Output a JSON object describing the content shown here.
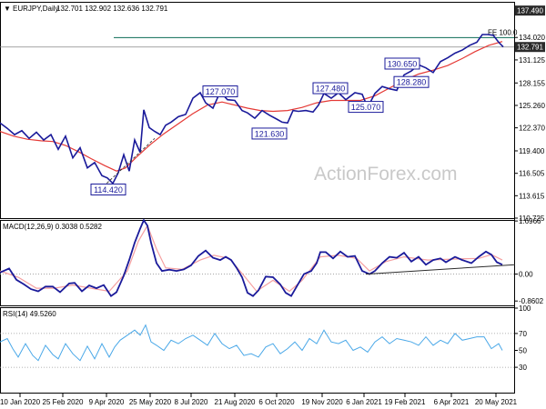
{
  "header": {
    "symbol": "EURJPY,Daily",
    "ohlc": "132.701 132.902 132.636 132.791",
    "macd_label": "MACD(12,26,9) 0.3038 0.5282",
    "rsi_label": "RSI(14) 49.5260"
  },
  "watermark": "ActionForex.com",
  "colors": {
    "price": "#1a1a9a",
    "ma": "#e53935",
    "signal": "#f5a0a0",
    "trend": "#2c2c2c",
    "fe_line": "#0b6b55",
    "grid_dot": "#9a9a9a",
    "price_tag": "#2c2c2c"
  },
  "chart_data": [
    {
      "type": "line",
      "title": "EURJPY,Daily",
      "ylim": [
        110.725,
        138.5
      ],
      "y_ticks": [
        "137.490",
        "134.020",
        "131.125",
        "128.155",
        "125.260",
        "122.370",
        "119.400",
        "116.505",
        "113.615",
        "110.725"
      ],
      "current_price": "132.791",
      "fe_level": {
        "value": 134.0,
        "label": "FE 100.0"
      },
      "moving_average_points": [
        [
          0,
          121.9
        ],
        [
          15,
          121.3
        ],
        [
          30,
          120.9
        ],
        [
          45,
          120.7
        ],
        [
          58,
          120.6
        ],
        [
          72,
          120.1
        ],
        [
          86,
          119.3
        ],
        [
          100,
          118.4
        ],
        [
          115,
          117.5
        ],
        [
          128,
          116.8
        ],
        [
          138,
          117.2
        ],
        [
          150,
          118.6
        ],
        [
          165,
          120.2
        ],
        [
          180,
          121.6
        ],
        [
          196,
          122.9
        ],
        [
          212,
          124.2
        ],
        [
          228,
          125.3
        ],
        [
          244,
          125.7
        ],
        [
          258,
          125.3
        ],
        [
          272,
          124.9
        ],
        [
          286,
          124.6
        ],
        [
          300,
          124.5
        ],
        [
          316,
          124.6
        ],
        [
          332,
          125.0
        ],
        [
          348,
          125.6
        ],
        [
          364,
          125.9
        ],
        [
          380,
          125.9
        ],
        [
          396,
          125.9
        ],
        [
          412,
          126.5
        ],
        [
          428,
          127.5
        ],
        [
          444,
          128.5
        ],
        [
          460,
          129.3
        ],
        [
          476,
          129.8
        ],
        [
          492,
          130.4
        ],
        [
          508,
          131.3
        ],
        [
          522,
          132.2
        ],
        [
          537,
          133.0
        ],
        [
          552,
          133.5
        ]
      ],
      "price_points": [
        [
          0,
          123.0
        ],
        [
          8,
          122.3
        ],
        [
          16,
          121.5
        ],
        [
          24,
          122.0
        ],
        [
          32,
          121.0
        ],
        [
          40,
          121.8
        ],
        [
          48,
          120.8
        ],
        [
          56,
          121.5
        ],
        [
          64,
          119.6
        ],
        [
          72,
          121.3
        ],
        [
          80,
          118.5
        ],
        [
          88,
          119.8
        ],
        [
          96,
          117.2
        ],
        [
          104,
          117.9
        ],
        [
          112,
          116.2
        ],
        [
          118,
          115.9
        ],
        [
          124,
          115.2
        ],
        [
          130,
          116.6
        ],
        [
          136,
          118.9
        ],
        [
          142,
          116.8
        ],
        [
          148,
          120.8
        ],
        [
          154,
          119.2
        ],
        [
          158,
          124.7
        ],
        [
          164,
          122.4
        ],
        [
          170,
          121.9
        ],
        [
          176,
          121.5
        ],
        [
          182,
          122.7
        ],
        [
          188,
          123.1
        ],
        [
          196,
          123.8
        ],
        [
          204,
          124.1
        ],
        [
          212,
          126.2
        ],
        [
          220,
          126.9
        ],
        [
          226,
          125.6
        ],
        [
          234,
          124.9
        ],
        [
          242,
          127.0
        ],
        [
          250,
          126.0
        ],
        [
          258,
          125.9
        ],
        [
          266,
          124.6
        ],
        [
          272,
          124.3
        ],
        [
          280,
          123.6
        ],
        [
          288,
          124.6
        ],
        [
          296,
          124.0
        ],
        [
          304,
          123.5
        ],
        [
          310,
          123.1
        ],
        [
          316,
          123.0
        ],
        [
          322,
          124.6
        ],
        [
          328,
          124.5
        ],
        [
          336,
          124.6
        ],
        [
          344,
          124.4
        ],
        [
          350,
          125.3
        ],
        [
          356,
          126.8
        ],
        [
          364,
          126.2
        ],
        [
          372,
          126.9
        ],
        [
          380,
          126.0
        ],
        [
          390,
          126.9
        ],
        [
          398,
          126.7
        ],
        [
          404,
          125.0
        ],
        [
          412,
          126.8
        ],
        [
          420,
          127.7
        ],
        [
          428,
          127.4
        ],
        [
          436,
          127.2
        ],
        [
          444,
          129.2
        ],
        [
          452,
          129.7
        ],
        [
          460,
          130.5
        ],
        [
          468,
          130.1
        ],
        [
          476,
          129.5
        ],
        [
          484,
          130.9
        ],
        [
          492,
          131.4
        ],
        [
          500,
          132.0
        ],
        [
          508,
          132.4
        ],
        [
          516,
          133.0
        ],
        [
          524,
          133.4
        ],
        [
          530,
          134.4
        ],
        [
          536,
          134.4
        ],
        [
          542,
          134.3
        ],
        [
          548,
          133.4
        ],
        [
          553,
          132.8
        ]
      ],
      "dashed_support": [
        [
          110,
          114.42
        ],
        [
          170,
          121.0
        ]
      ],
      "callouts": [
        {
          "label": "127.070",
          "x": 242,
          "value": 127.07
        },
        {
          "label": "114.420",
          "x": 119,
          "value": 114.42
        },
        {
          "label": "121.630",
          "x": 296,
          "value": 121.63
        },
        {
          "label": "127.480",
          "x": 363,
          "value": 127.48
        },
        {
          "label": "125.070",
          "x": 402,
          "value": 125.07
        },
        {
          "label": "130.650",
          "x": 442,
          "value": 130.65
        },
        {
          "label": "128.280",
          "x": 452,
          "value": 128.28
        }
      ]
    },
    {
      "type": "line",
      "title": "MACD(12,26,9) 0.3038 0.5282",
      "ylim": [
        -1.0,
        1.7
      ],
      "y_ticks": [
        "1.6966",
        "0.00",
        "-0.8602"
      ],
      "macd_points": [
        [
          0,
          0.05
        ],
        [
          10,
          0.18
        ],
        [
          18,
          -0.18
        ],
        [
          26,
          -0.32
        ],
        [
          34,
          -0.48
        ],
        [
          42,
          -0.55
        ],
        [
          50,
          -0.4
        ],
        [
          58,
          -0.4
        ],
        [
          66,
          -0.58
        ],
        [
          76,
          -0.3
        ],
        [
          82,
          -0.28
        ],
        [
          90,
          -0.55
        ],
        [
          98,
          -0.36
        ],
        [
          106,
          -0.45
        ],
        [
          114,
          -0.35
        ],
        [
          122,
          -0.7
        ],
        [
          128,
          -0.58
        ],
        [
          136,
          -0.05
        ],
        [
          142,
          0.45
        ],
        [
          148,
          1.0
        ],
        [
          154,
          1.45
        ],
        [
          158,
          1.72
        ],
        [
          162,
          1.55
        ],
        [
          166,
          1.0
        ],
        [
          172,
          0.35
        ],
        [
          178,
          0.1
        ],
        [
          186,
          0.14
        ],
        [
          194,
          0.1
        ],
        [
          202,
          0.15
        ],
        [
          210,
          0.28
        ],
        [
          218,
          0.58
        ],
        [
          226,
          0.75
        ],
        [
          234,
          0.52
        ],
        [
          242,
          0.45
        ],
        [
          248,
          0.55
        ],
        [
          254,
          0.45
        ],
        [
          260,
          0.2
        ],
        [
          266,
          -0.1
        ],
        [
          272,
          -0.6
        ],
        [
          278,
          -0.7
        ],
        [
          284,
          -0.52
        ],
        [
          292,
          -0.08
        ],
        [
          300,
          -0.1
        ],
        [
          308,
          -0.33
        ],
        [
          314,
          -0.6
        ],
        [
          320,
          -0.7
        ],
        [
          326,
          -0.4
        ],
        [
          334,
          0.0
        ],
        [
          342,
          0.1
        ],
        [
          348,
          0.35
        ],
        [
          352,
          0.7
        ],
        [
          358,
          0.7
        ],
        [
          366,
          0.5
        ],
        [
          374,
          0.72
        ],
        [
          382,
          0.55
        ],
        [
          390,
          0.58
        ],
        [
          398,
          0.1
        ],
        [
          406,
          0.0
        ],
        [
          412,
          0.1
        ],
        [
          420,
          0.35
        ],
        [
          428,
          0.55
        ],
        [
          436,
          0.52
        ],
        [
          444,
          0.68
        ],
        [
          452,
          0.4
        ],
        [
          460,
          0.55
        ],
        [
          468,
          0.3
        ],
        [
          476,
          0.45
        ],
        [
          484,
          0.5
        ],
        [
          490,
          0.38
        ],
        [
          500,
          0.55
        ],
        [
          508,
          0.45
        ],
        [
          518,
          0.35
        ],
        [
          526,
          0.55
        ],
        [
          534,
          0.72
        ],
        [
          540,
          0.62
        ],
        [
          546,
          0.38
        ],
        [
          552,
          0.3
        ]
      ],
      "signal_points": [
        [
          0,
          0.1
        ],
        [
          20,
          -0.1
        ],
        [
          40,
          -0.45
        ],
        [
          60,
          -0.45
        ],
        [
          80,
          -0.35
        ],
        [
          100,
          -0.45
        ],
        [
          120,
          -0.55
        ],
        [
          140,
          0.1
        ],
        [
          152,
          1.05
        ],
        [
          162,
          1.55
        ],
        [
          172,
          0.8
        ],
        [
          182,
          0.2
        ],
        [
          200,
          0.15
        ],
        [
          220,
          0.45
        ],
        [
          235,
          0.6
        ],
        [
          252,
          0.5
        ],
        [
          268,
          -0.05
        ],
        [
          282,
          -0.55
        ],
        [
          300,
          -0.2
        ],
        [
          318,
          -0.55
        ],
        [
          332,
          -0.2
        ],
        [
          352,
          0.55
        ],
        [
          372,
          0.6
        ],
        [
          392,
          0.5
        ],
        [
          406,
          0.1
        ],
        [
          424,
          0.4
        ],
        [
          444,
          0.55
        ],
        [
          470,
          0.45
        ],
        [
          500,
          0.48
        ],
        [
          526,
          0.5
        ],
        [
          540,
          0.62
        ],
        [
          552,
          0.45
        ]
      ],
      "trend_line": [
        [
          402,
          0.0
        ],
        [
          566,
          0.3
        ]
      ]
    },
    {
      "type": "line",
      "title": "RSI(14) 49.5260",
      "ylim": [
        0,
        100
      ],
      "y_ticks": [
        "100",
        "70",
        "50",
        "30"
      ],
      "rsi_points": [
        [
          0,
          60
        ],
        [
          8,
          64
        ],
        [
          14,
          52
        ],
        [
          20,
          42
        ],
        [
          28,
          58
        ],
        [
          36,
          44
        ],
        [
          42,
          38
        ],
        [
          50,
          56
        ],
        [
          58,
          45
        ],
        [
          64,
          40
        ],
        [
          72,
          58
        ],
        [
          80,
          46
        ],
        [
          88,
          38
        ],
        [
          96,
          55
        ],
        [
          104,
          40
        ],
        [
          112,
          58
        ],
        [
          120,
          42
        ],
        [
          126,
          54
        ],
        [
          132,
          62
        ],
        [
          140,
          68
        ],
        [
          148,
          74
        ],
        [
          154,
          68
        ],
        [
          160,
          80
        ],
        [
          166,
          60
        ],
        [
          172,
          56
        ],
        [
          180,
          50
        ],
        [
          188,
          62
        ],
        [
          196,
          58
        ],
        [
          204,
          64
        ],
        [
          212,
          68
        ],
        [
          220,
          62
        ],
        [
          228,
          56
        ],
        [
          236,
          70
        ],
        [
          244,
          58
        ],
        [
          252,
          52
        ],
        [
          260,
          56
        ],
        [
          268,
          44
        ],
        [
          276,
          46
        ],
        [
          284,
          42
        ],
        [
          292,
          54
        ],
        [
          300,
          58
        ],
        [
          308,
          46
        ],
        [
          316,
          52
        ],
        [
          324,
          60
        ],
        [
          332,
          50
        ],
        [
          340,
          64
        ],
        [
          348,
          58
        ],
        [
          356,
          74
        ],
        [
          364,
          60
        ],
        [
          372,
          58
        ],
        [
          380,
          62
        ],
        [
          388,
          50
        ],
        [
          396,
          54
        ],
        [
          404,
          48
        ],
        [
          412,
          60
        ],
        [
          420,
          66
        ],
        [
          428,
          58
        ],
        [
          436,
          64
        ],
        [
          444,
          62
        ],
        [
          452,
          60
        ],
        [
          460,
          56
        ],
        [
          468,
          66
        ],
        [
          476,
          56
        ],
        [
          484,
          62
        ],
        [
          492,
          58
        ],
        [
          500,
          70
        ],
        [
          508,
          62
        ],
        [
          516,
          64
        ],
        [
          524,
          66
        ],
        [
          532,
          66
        ],
        [
          540,
          52
        ],
        [
          548,
          58
        ],
        [
          552,
          50
        ]
      ]
    }
  ],
  "x_axis": {
    "labels": [
      "10 Jan 2020",
      "25 Feb 2020",
      "9 Apr 2020",
      "25 May 2020",
      "8 Jul 2020",
      "21 Aug 2020",
      "6 Oct 2020",
      "19 Nov 2020",
      "6 Jan 2021",
      "19 Feb 2021",
      "6 Apr 2021",
      "20 May 2021"
    ],
    "positions": [
      22,
      69,
      117,
      165,
      210,
      258,
      304,
      354,
      400,
      445,
      496,
      545
    ]
  }
}
